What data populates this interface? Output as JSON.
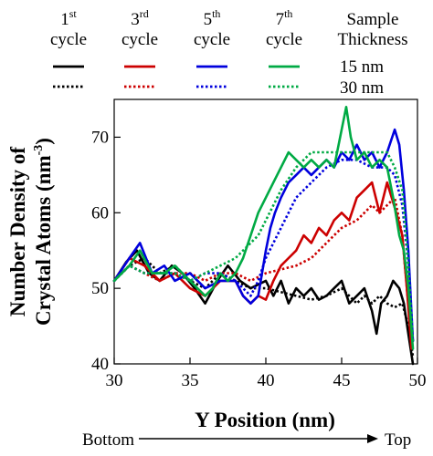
{
  "chart_data": {
    "type": "line",
    "title": "",
    "xlabel": "Y Position (nm)",
    "ylabel_line1": "Number Density of",
    "ylabel_line2": "Crystal Atoms (nm",
    "ylabel_sup": "-3",
    "ylabel_close": ")",
    "xlim": [
      30,
      50
    ],
    "ylim": [
      40,
      75
    ],
    "xticks": [
      30,
      35,
      40,
      45,
      50
    ],
    "yticks": [
      40,
      50,
      60,
      70
    ],
    "grid": false,
    "legend": {
      "header_label": "Sample",
      "header_label2": "Thickness",
      "cycles": [
        {
          "num": "1",
          "sup": "st",
          "word": "cycle",
          "color": "#000000"
        },
        {
          "num": "3",
          "sup": "rd",
          "word": "cycle",
          "color": "#cc0000"
        },
        {
          "num": "5",
          "sup": "th",
          "word": "cycle",
          "color": "#0000dd"
        },
        {
          "num": "7",
          "sup": "th",
          "word": "cycle",
          "color": "#00aa44"
        }
      ],
      "thickness": [
        {
          "label": "15 nm",
          "style": "solid"
        },
        {
          "label": "30 nm",
          "style": "dotted"
        }
      ]
    },
    "direction": {
      "left": "Bottom",
      "right": "Top"
    },
    "series": [
      {
        "cycle": "1st",
        "thickness": "15 nm",
        "color": "#000000",
        "style": "solid",
        "x": [
          30.0,
          30.8,
          31.5,
          32.3,
          33.0,
          33.8,
          34.5,
          35.3,
          36.0,
          36.8,
          37.5,
          38.3,
          39.0,
          39.5,
          40.0,
          40.5,
          41.0,
          41.5,
          42.0,
          42.5,
          43.0,
          43.5,
          44.0,
          44.5,
          45.0,
          45.5,
          46.0,
          46.5,
          47.0,
          47.3,
          47.6,
          48.0,
          48.4,
          48.8,
          49.1,
          49.4,
          49.7
        ],
        "y": [
          51,
          53.5,
          55,
          52,
          51,
          53,
          52,
          50,
          48,
          51,
          53,
          51,
          50,
          50.5,
          51,
          49,
          51,
          48,
          50,
          49,
          50,
          48.5,
          49,
          50,
          51,
          48,
          49,
          50,
          47,
          44,
          48,
          49,
          51,
          50,
          48,
          44,
          40
        ]
      },
      {
        "cycle": "1st",
        "thickness": "30 nm",
        "color": "#000000",
        "style": "dotted",
        "x": [
          30.0,
          31.0,
          32.0,
          33.0,
          34.0,
          35.0,
          36.0,
          37.0,
          38.0,
          39.0,
          40.0,
          41.0,
          42.0,
          43.0,
          44.0,
          45.0,
          45.5,
          46.0,
          46.5,
          47.0,
          47.5,
          48.0,
          48.5,
          49.0,
          49.4,
          49.7
        ],
        "y": [
          51,
          53,
          54,
          52,
          53,
          51,
          50,
          52,
          51,
          50,
          50,
          49.5,
          49,
          48.5,
          49,
          50,
          49,
          48,
          49,
          48,
          49,
          48,
          47.5,
          48,
          45,
          41
        ]
      },
      {
        "cycle": "3rd",
        "thickness": "15 nm",
        "color": "#cc0000",
        "style": "solid",
        "x": [
          30.0,
          31.0,
          32.0,
          33.0,
          34.0,
          35.0,
          36.0,
          37.0,
          38.0,
          38.5,
          39.0,
          39.5,
          40.0,
          40.5,
          41.0,
          41.5,
          42.0,
          42.5,
          43.0,
          43.5,
          44.0,
          44.5,
          45.0,
          45.5,
          46.0,
          46.5,
          47.0,
          47.5,
          48.0,
          48.3,
          48.6,
          49.0,
          49.3,
          49.6
        ],
        "y": [
          51,
          54,
          53,
          51,
          52,
          50,
          49,
          51,
          51,
          49,
          48,
          49,
          48.5,
          51,
          53,
          54,
          55,
          57,
          56,
          58,
          57,
          59,
          60,
          59,
          62,
          63,
          64,
          60,
          64,
          62,
          60,
          57,
          50,
          42
        ]
      },
      {
        "cycle": "3rd",
        "thickness": "30 nm",
        "color": "#cc0000",
        "style": "dotted",
        "x": [
          30.0,
          31.0,
          32.0,
          33.0,
          34.0,
          35.0,
          36.0,
          37.0,
          38.0,
          39.0,
          40.0,
          41.0,
          42.0,
          43.0,
          44.0,
          45.0,
          46.0,
          46.5,
          47.0,
          47.5,
          48.0,
          48.5,
          49.0,
          49.3,
          49.6
        ],
        "y": [
          51,
          53,
          52,
          51,
          52,
          52,
          51,
          52,
          52,
          51,
          52,
          52.5,
          53,
          54,
          56,
          58,
          59,
          60,
          61,
          60,
          61,
          62,
          57,
          50,
          43
        ]
      },
      {
        "cycle": "5th",
        "thickness": "15 nm",
        "color": "#0000dd",
        "style": "solid",
        "x": [
          30.0,
          31.0,
          31.7,
          32.5,
          33.3,
          34.0,
          35.0,
          36.0,
          37.0,
          38.0,
          38.5,
          39.0,
          39.5,
          40.0,
          40.3,
          40.6,
          41.0,
          41.5,
          42.0,
          42.5,
          43.0,
          43.5,
          44.0,
          44.5,
          45.0,
          45.5,
          46.0,
          46.5,
          47.0,
          47.5,
          48.0,
          48.5,
          48.8,
          49.1,
          49.4,
          49.7
        ],
        "y": [
          51,
          54,
          56,
          52,
          53,
          51,
          52,
          50,
          51,
          51,
          49,
          48,
          49,
          55,
          58,
          60,
          62,
          64,
          65,
          66,
          65,
          66,
          67,
          66,
          68,
          67,
          69,
          67,
          68,
          66,
          68,
          71,
          69,
          63,
          55,
          43
        ]
      },
      {
        "cycle": "5th",
        "thickness": "30 nm",
        "color": "#0000dd",
        "style": "dotted",
        "x": [
          30.0,
          31.0,
          32.0,
          33.0,
          34.0,
          35.0,
          36.0,
          37.0,
          38.0,
          38.5,
          39.0,
          39.5,
          40.0,
          40.5,
          41.0,
          41.5,
          42.0,
          43.0,
          44.0,
          45.0,
          46.0,
          47.0,
          48.0,
          48.5,
          49.0,
          49.4,
          49.7
        ],
        "y": [
          51,
          53,
          52,
          52,
          52,
          51,
          52,
          52,
          51,
          50,
          49,
          51,
          54,
          56,
          58,
          60,
          62,
          64,
          66,
          67,
          67,
          66,
          66,
          65,
          61,
          53,
          43
        ]
      },
      {
        "cycle": "7th",
        "thickness": "15 nm",
        "color": "#00aa44",
        "style": "solid",
        "x": [
          30.0,
          31.0,
          31.7,
          32.5,
          33.3,
          34.0,
          35.0,
          36.0,
          36.5,
          37.0,
          37.5,
          38.0,
          38.5,
          39.0,
          39.5,
          40.0,
          40.5,
          41.0,
          41.5,
          42.0,
          42.5,
          43.0,
          43.5,
          44.0,
          44.5,
          45.0,
          45.3,
          45.6,
          46.0,
          46.5,
          47.0,
          47.5,
          48.0,
          48.4,
          48.8,
          49.1,
          49.4,
          49.7
        ],
        "y": [
          51,
          53,
          55,
          52,
          52,
          53,
          51,
          49,
          50,
          52,
          51,
          52,
          54,
          57,
          60,
          62,
          64,
          66,
          68,
          67,
          66,
          67,
          66,
          67,
          66,
          71,
          74,
          70,
          67,
          68,
          66,
          67,
          66,
          62,
          57,
          55,
          50,
          42
        ]
      },
      {
        "cycle": "7th",
        "thickness": "30 nm",
        "color": "#00aa44",
        "style": "dotted",
        "x": [
          30.0,
          31.0,
          32.0,
          33.0,
          34.0,
          35.0,
          36.0,
          37.0,
          38.0,
          38.5,
          39.0,
          39.5,
          40.0,
          40.5,
          41.0,
          42.0,
          43.0,
          44.0,
          45.0,
          46.0,
          47.0,
          48.0,
          48.5,
          49.0,
          49.4,
          49.7
        ],
        "y": [
          51,
          53,
          52,
          52,
          52,
          51,
          52,
          53,
          54,
          55,
          56,
          57,
          59,
          61,
          63,
          66,
          68,
          68,
          68,
          68,
          68,
          68,
          66,
          63,
          53,
          43
        ]
      }
    ]
  }
}
